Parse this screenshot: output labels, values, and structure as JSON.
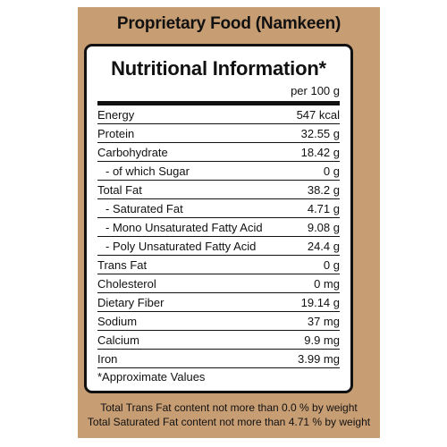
{
  "pack": {
    "title": "Proprietary Food (Namkeen)",
    "background": "#c79d73"
  },
  "panel": {
    "title": "Nutritional Information*",
    "per_unit": "per 100 g",
    "rows": [
      {
        "name": "Energy",
        "value": "547 kcal",
        "indent": false
      },
      {
        "name": "Protein",
        "value": "32.55 g",
        "indent": false
      },
      {
        "name": "Carbohydrate",
        "value": "18.42 g",
        "indent": false
      },
      {
        "name": "- of which Sugar",
        "value": "0 g",
        "indent": true
      },
      {
        "name": "Total Fat",
        "value": "38.2 g",
        "indent": false
      },
      {
        "name": "- Saturated Fat",
        "value": "4.71 g",
        "indent": true
      },
      {
        "name": "- Mono Unsaturated Fatty Acid",
        "value": "9.08 g",
        "indent": true
      },
      {
        "name": "- Poly Unsaturated Fatty Acid",
        "value": "24.4 g",
        "indent": true
      },
      {
        "name": "Trans Fat",
        "value": "0 g",
        "indent": false
      },
      {
        "name": "Cholesterol",
        "value": "0 mg",
        "indent": false
      },
      {
        "name": "Dietary Fiber",
        "value": "19.14 g",
        "indent": false
      },
      {
        "name": "Sodium",
        "value": "37 mg",
        "indent": false
      },
      {
        "name": "Calcium",
        "value": "9.9 mg",
        "indent": false
      },
      {
        "name": "Iron",
        "value": "3.99 mg",
        "indent": false
      }
    ],
    "footnote": "*Approximate Values"
  },
  "notes": [
    "Total Trans Fat content not more than 0.0 % by weight",
    "Total Saturated Fat content not more than 4.71 % by weight"
  ]
}
